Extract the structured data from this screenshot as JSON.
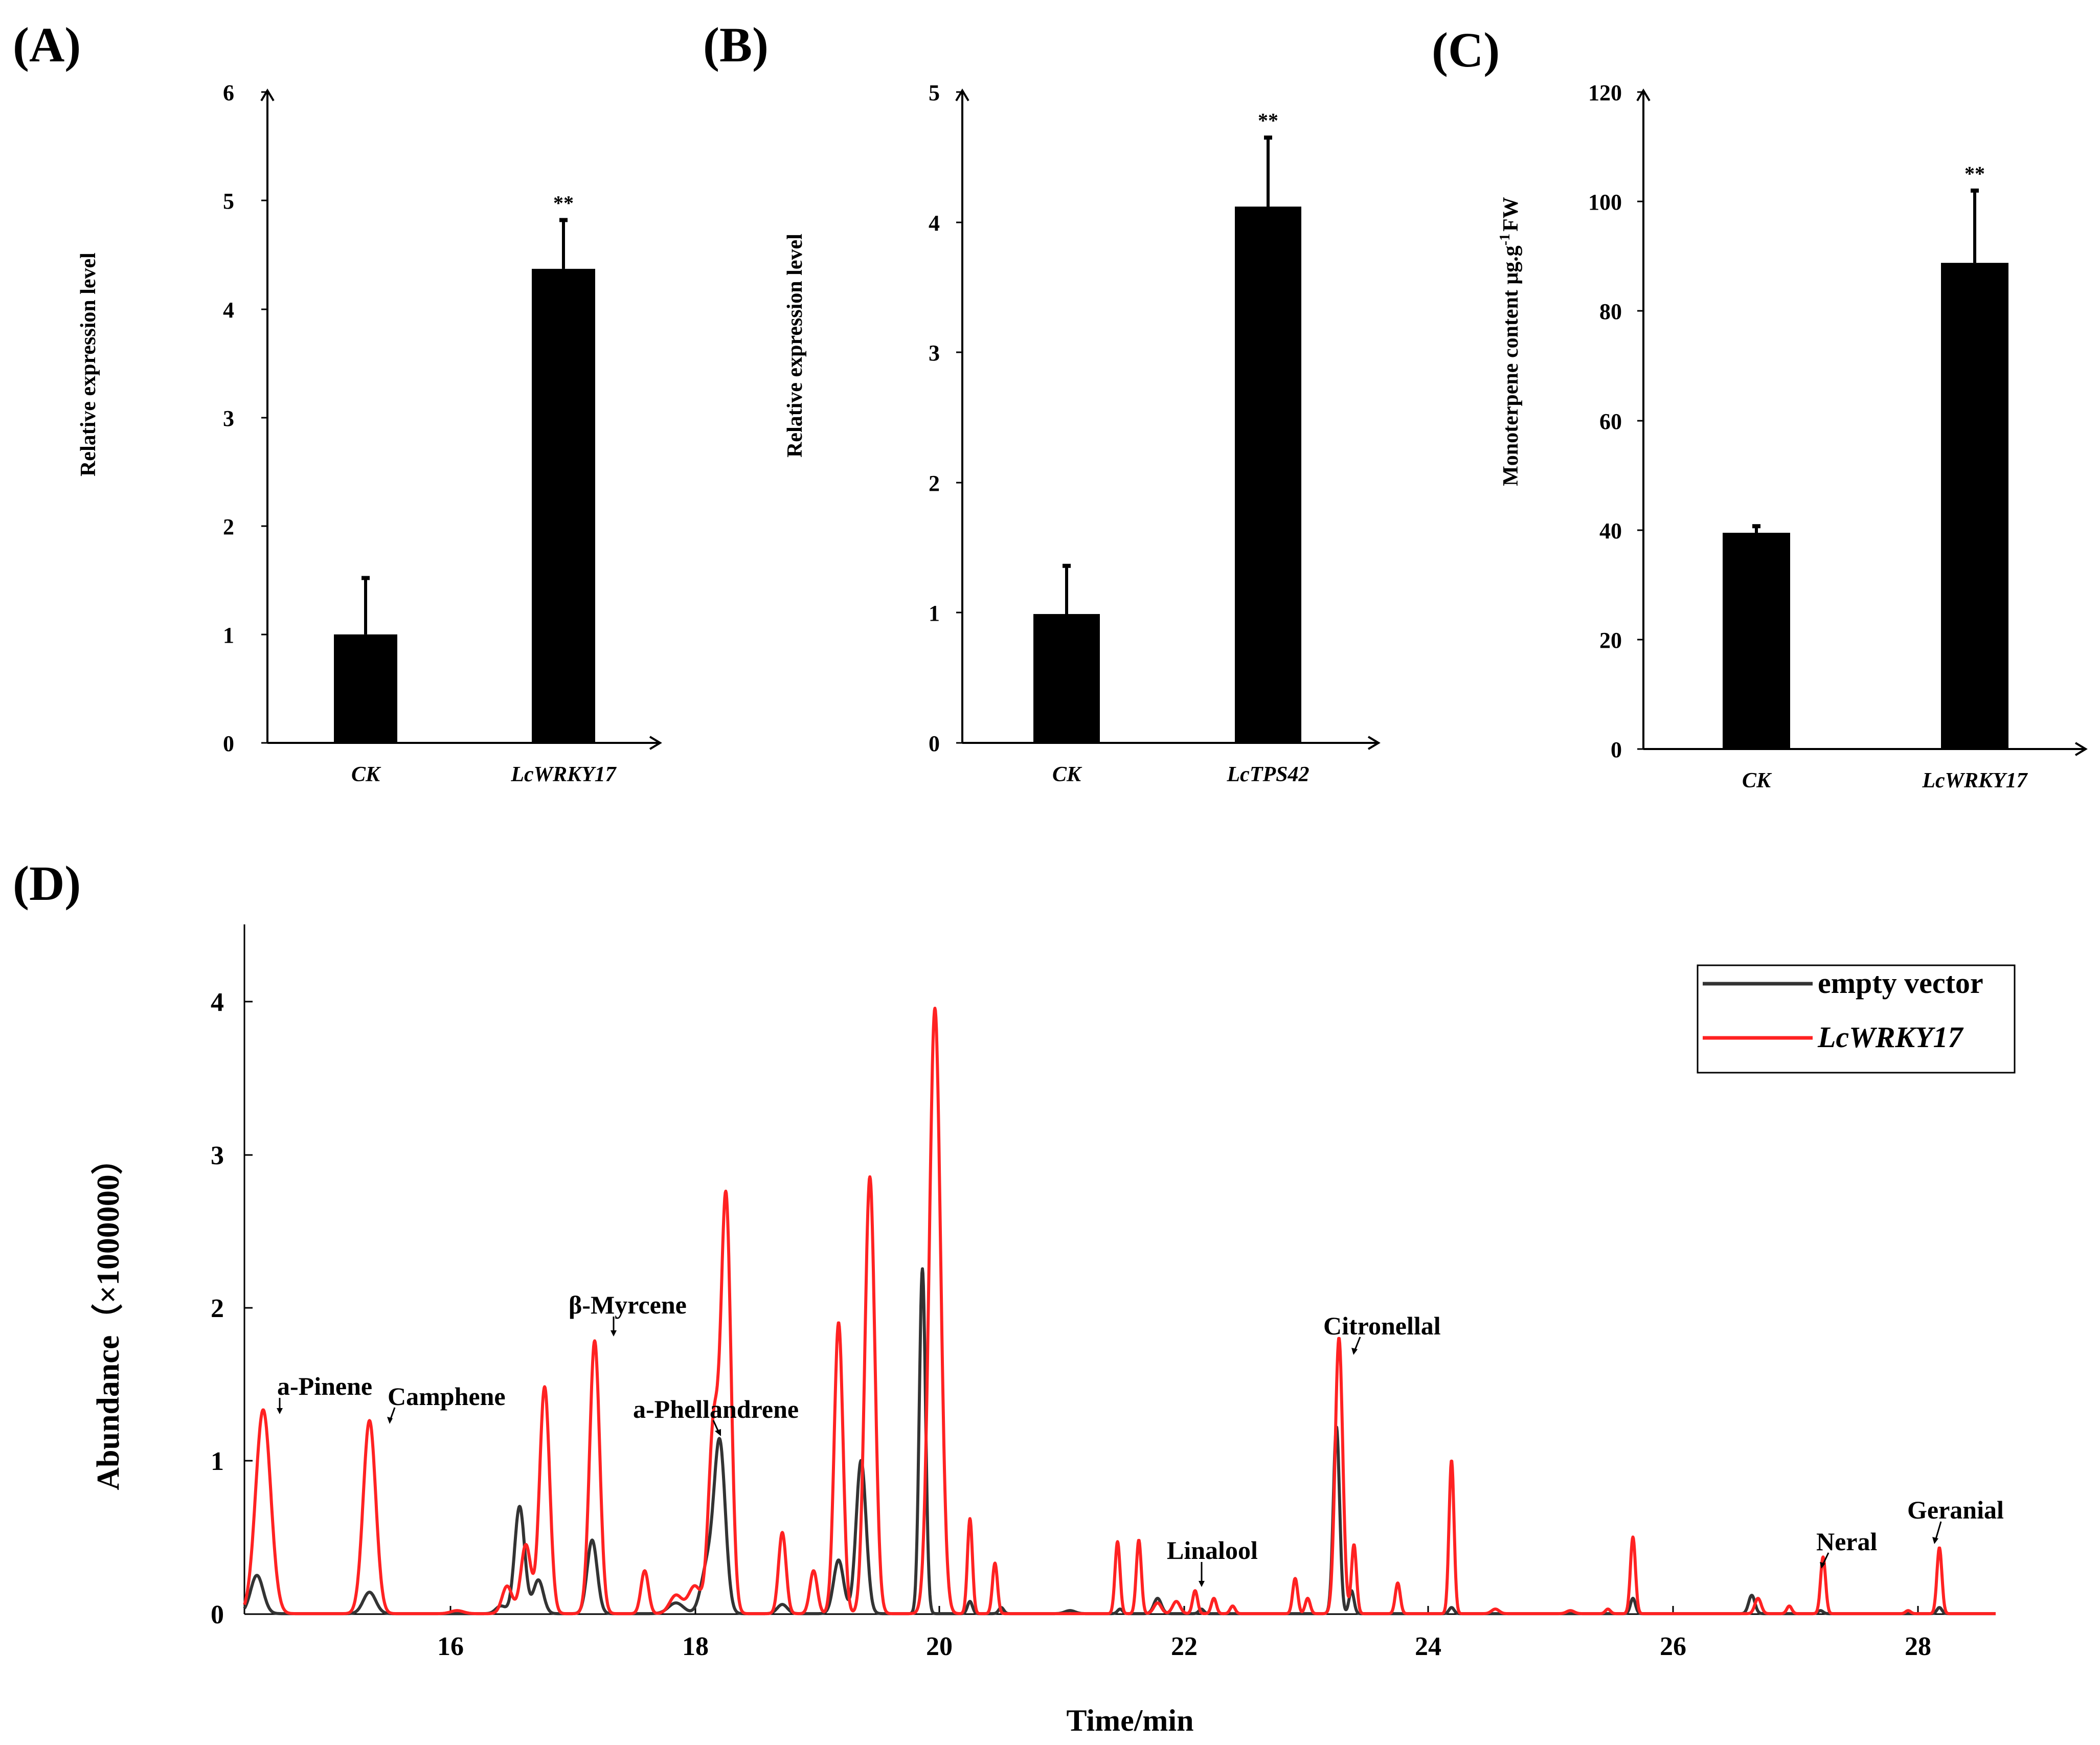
{
  "figure": {
    "background": "#ffffff"
  },
  "chart_data": [
    {
      "panel": "(A)",
      "type": "bar",
      "categories": [
        "CK",
        "LcWRKY17"
      ],
      "values": [
        1.0,
        4.37
      ],
      "errors": [
        0.52,
        0.45
      ],
      "significance": [
        "",
        "**"
      ],
      "ylabel": "Relative expression level",
      "ylim": [
        0,
        6
      ],
      "yticks": [
        0,
        1,
        2,
        3,
        4,
        5,
        6
      ],
      "bar_color": "#000000"
    },
    {
      "panel": "(B)",
      "type": "bar",
      "categories": [
        "CK",
        "LcTPS42"
      ],
      "values": [
        0.99,
        4.12
      ],
      "errors": [
        0.37,
        0.53
      ],
      "significance": [
        "",
        "**"
      ],
      "ylabel": "Relative expression level",
      "ylim": [
        0,
        5
      ],
      "yticks": [
        0,
        1,
        2,
        3,
        4,
        5
      ],
      "bar_color": "#000000"
    },
    {
      "panel": "(C)",
      "type": "bar",
      "categories": [
        "CK",
        "LcWRKY17"
      ],
      "values": [
        39.5,
        88.8
      ],
      "errors": [
        1.2,
        13.2
      ],
      "significance": [
        "",
        "**"
      ],
      "ylabel": "Monoterpene content μg.g",
      "ylabel_sup": "-1",
      "ylabel_suffix": "FW",
      "ylim": [
        0,
        120
      ],
      "yticks": [
        0,
        20,
        40,
        60,
        80,
        100,
        120
      ],
      "bar_color": "#000000"
    },
    {
      "panel": "(D)",
      "type": "line",
      "xlabel": "Time/min",
      "ylabel": "Abundance（×1000000）",
      "xlim": [
        14.5,
        28.5
      ],
      "ylim": [
        0,
        4.5
      ],
      "xticks": [
        16,
        18,
        20,
        22,
        24,
        26,
        28
      ],
      "yticks": [
        0,
        1,
        2,
        3,
        4
      ],
      "legend_position": "top-right",
      "series": [
        {
          "name": "empty vector",
          "color": "#333333",
          "peaks": [
            [
              14.6,
              0.25,
              0.05
            ],
            [
              15.5,
              0.14,
              0.05
            ],
            [
              16.55,
              0.05,
              0.04
            ],
            [
              16.7,
              0.7,
              0.04
            ],
            [
              16.85,
              0.22,
              0.04
            ],
            [
              17.28,
              0.48,
              0.04
            ],
            [
              17.95,
              0.07,
              0.06
            ],
            [
              18.2,
              0.3,
              0.05
            ],
            [
              18.3,
              1.1,
              0.045
            ],
            [
              18.8,
              0.06,
              0.04
            ],
            [
              19.25,
              0.35,
              0.04
            ],
            [
              19.43,
              1.0,
              0.04
            ],
            [
              19.92,
              2.25,
              0.025
            ],
            [
              20.3,
              0.08,
              0.02
            ],
            [
              20.55,
              0.04,
              0.02
            ],
            [
              21.1,
              0.02,
              0.04
            ],
            [
              21.5,
              0.03,
              0.02
            ],
            [
              21.8,
              0.1,
              0.03
            ],
            [
              22.15,
              0.03,
              0.02
            ],
            [
              23.23,
              1.22,
              0.025
            ],
            [
              23.35,
              0.15,
              0.02
            ],
            [
              24.15,
              0.04,
              0.02
            ],
            [
              25.6,
              0.1,
              0.02
            ],
            [
              26.55,
              0.12,
              0.025
            ],
            [
              27.1,
              0.02,
              0.02
            ],
            [
              28.05,
              0.04,
              0.02
            ]
          ]
        },
        {
          "name": "LcWRKY17",
          "color": "#ff2222",
          "peaks": [
            [
              14.65,
              1.33,
              0.06
            ],
            [
              15.5,
              1.26,
              0.05
            ],
            [
              16.2,
              0.02,
              0.05
            ],
            [
              16.6,
              0.18,
              0.04
            ],
            [
              16.75,
              0.45,
              0.04
            ],
            [
              16.9,
              1.48,
              0.04
            ],
            [
              17.3,
              1.78,
              0.04
            ],
            [
              17.7,
              0.28,
              0.03
            ],
            [
              17.95,
              0.12,
              0.05
            ],
            [
              18.1,
              0.18,
              0.05
            ],
            [
              18.25,
              1.2,
              0.04
            ],
            [
              18.35,
              2.7,
              0.04
            ],
            [
              18.8,
              0.53,
              0.03
            ],
            [
              19.05,
              0.28,
              0.03
            ],
            [
              19.25,
              1.9,
              0.035
            ],
            [
              19.5,
              2.85,
              0.04
            ],
            [
              20.02,
              3.95,
              0.045
            ],
            [
              20.3,
              0.62,
              0.02
            ],
            [
              20.5,
              0.33,
              0.02
            ],
            [
              21.48,
              0.47,
              0.02
            ],
            [
              21.65,
              0.48,
              0.02
            ],
            [
              21.8,
              0.07,
              0.03
            ],
            [
              21.95,
              0.08,
              0.03
            ],
            [
              22.1,
              0.15,
              0.02
            ],
            [
              22.25,
              0.1,
              0.02
            ],
            [
              22.4,
              0.05,
              0.02
            ],
            [
              22.9,
              0.23,
              0.02
            ],
            [
              23.0,
              0.1,
              0.02
            ],
            [
              23.25,
              1.8,
              0.03
            ],
            [
              23.37,
              0.45,
              0.02
            ],
            [
              23.72,
              0.2,
              0.02
            ],
            [
              24.15,
              1.0,
              0.02
            ],
            [
              24.5,
              0.03,
              0.03
            ],
            [
              25.1,
              0.02,
              0.03
            ],
            [
              25.4,
              0.03,
              0.02
            ],
            [
              25.6,
              0.5,
              0.02
            ],
            [
              26.6,
              0.1,
              0.025
            ],
            [
              26.85,
              0.05,
              0.02
            ],
            [
              27.12,
              0.37,
              0.02
            ],
            [
              27.8,
              0.02,
              0.02
            ],
            [
              28.05,
              0.43,
              0.02
            ]
          ]
        }
      ],
      "annotations": [
        {
          "label": "a-Pinene",
          "x": 14.68,
          "y": 1.33
        },
        {
          "label": "Camphene",
          "x": 15.55,
          "y": 1.27
        },
        {
          "label": "β-Myrcene",
          "x": 17.33,
          "y": 1.8
        },
        {
          "label": "a-Phellandrene",
          "x": 18.25,
          "y": 1.2
        },
        {
          "label": "Linalool",
          "x": 22.15,
          "y": 0.15
        },
        {
          "label": "Citronellal",
          "x": 23.28,
          "y": 1.8
        },
        {
          "label": "Neral",
          "x": 27.12,
          "y": 0.37
        },
        {
          "label": "Geranial",
          "x": 28.08,
          "y": 0.43
        }
      ]
    }
  ]
}
